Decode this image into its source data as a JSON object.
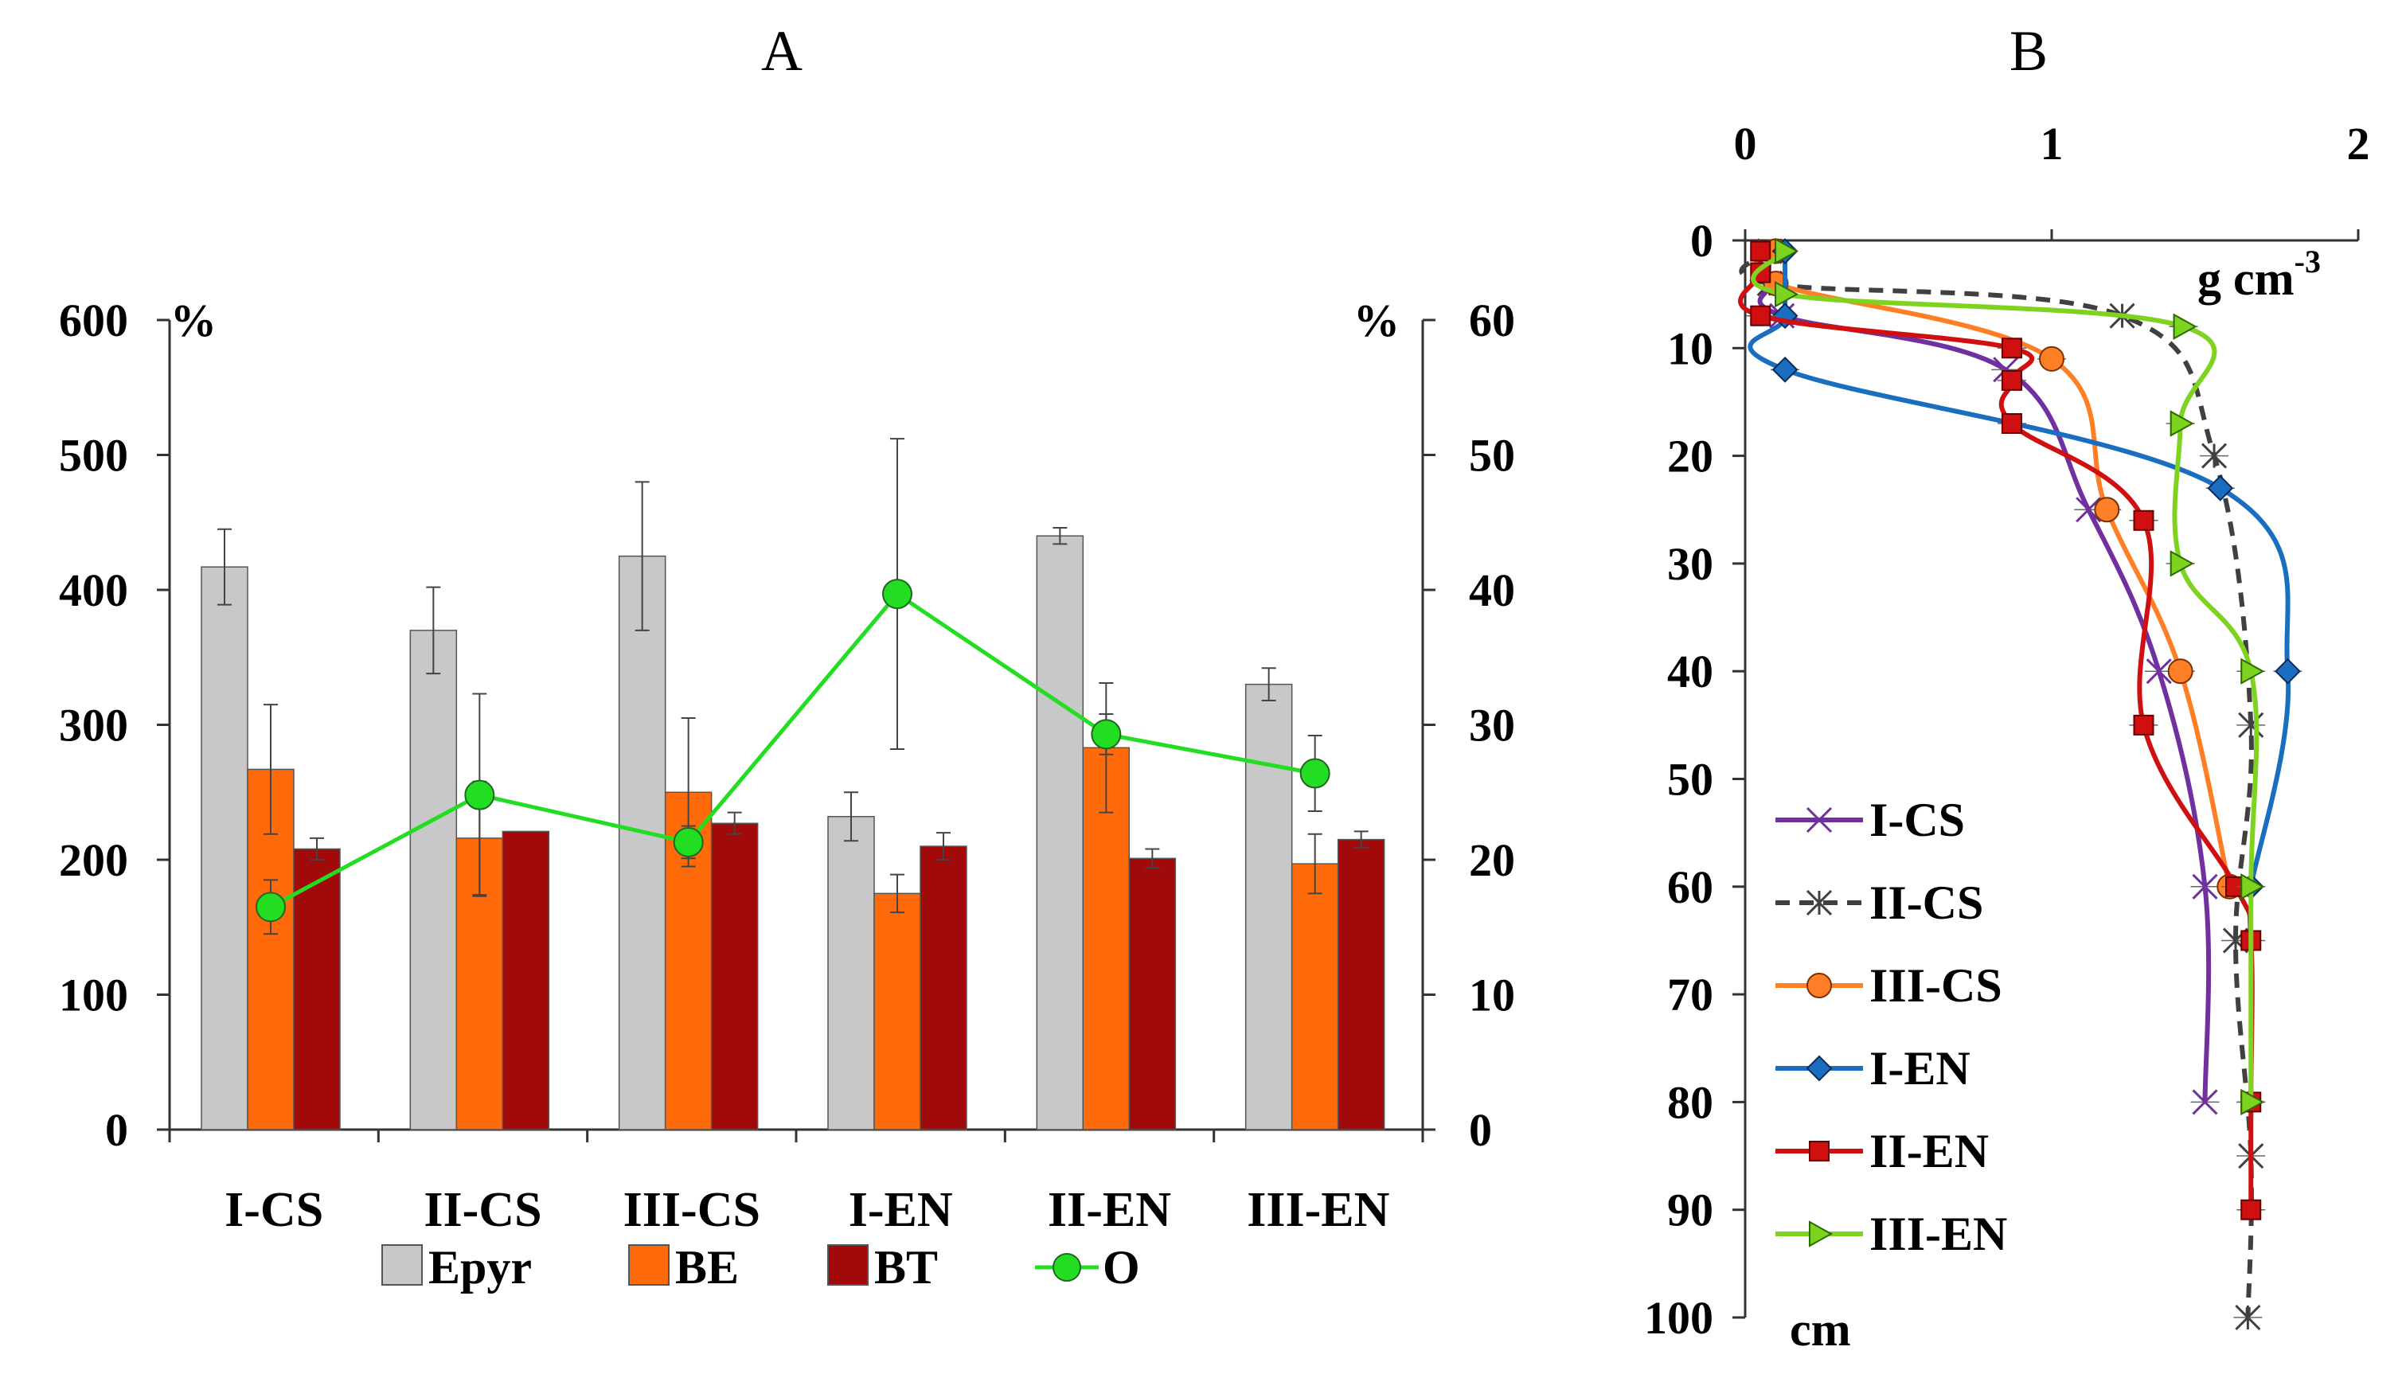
{
  "chart_data": [
    {
      "panel": "A",
      "type": "bar",
      "title": "A",
      "categories": [
        "I-CS",
        "II-CS",
        "III-CS",
        "I-EN",
        "II-EN",
        "III-EN"
      ],
      "ylim_left": [
        0,
        600
      ],
      "ylim_right": [
        0,
        60
      ],
      "yticks_left": [
        "0",
        "100",
        "200",
        "300",
        "400",
        "500",
        "600"
      ],
      "yticks_right": [
        "0",
        "10",
        "20",
        "30",
        "40",
        "50",
        "60"
      ],
      "ylabel_left": "%",
      "ylabel_right": "%",
      "series": [
        {
          "name": "Epyr",
          "axis": "left",
          "color": "#c8c8c8",
          "values": [
            417,
            370,
            425,
            232,
            440,
            330
          ],
          "err": [
            28,
            32,
            55,
            18,
            6,
            12
          ]
        },
        {
          "name": "BE",
          "axis": "left",
          "color": "#ff6a0a",
          "values": [
            267,
            216,
            250,
            175,
            283,
            197
          ],
          "err": [
            48,
            42,
            55,
            14,
            48,
            22
          ]
        },
        {
          "name": "BT",
          "axis": "left",
          "color": "#a00a0a",
          "values": [
            208,
            221,
            227,
            210,
            201,
            215
          ],
          "err": [
            8,
            0,
            8,
            10,
            7,
            6
          ]
        },
        {
          "name": "O",
          "axis": "right",
          "type": "line",
          "color": "#22dd22",
          "values": [
            16.5,
            24.8,
            21.3,
            39.7,
            29.3,
            26.4
          ],
          "err": [
            2.0,
            7.5,
            1.2,
            11.5,
            1.5,
            2.8
          ]
        }
      ],
      "legend": [
        "Epyr",
        "BE",
        "BT",
        "O"
      ]
    },
    {
      "panel": "B",
      "type": "line",
      "title": "B",
      "xlabel": "g cm",
      "xlabel_sup": "-3",
      "ylabel": "cm",
      "xlim": [
        0,
        2
      ],
      "ylim": [
        0,
        100
      ],
      "xticks": [
        "0",
        "1",
        "2"
      ],
      "yticks": [
        "0",
        "10",
        "20",
        "30",
        "40",
        "50",
        "60",
        "70",
        "80",
        "90",
        "100"
      ],
      "series": [
        {
          "name": "I-CS",
          "color": "#7030a0",
          "marker": "x",
          "dash": false,
          "points": [
            [
              0.08,
              1
            ],
            [
              0.08,
              4
            ],
            [
              0.12,
              7
            ],
            [
              0.85,
              12
            ],
            [
              1.12,
              25
            ],
            [
              1.35,
              40
            ],
            [
              1.5,
              60
            ],
            [
              1.5,
              80
            ]
          ]
        },
        {
          "name": "II-CS",
          "color": "#404040",
          "marker": "star",
          "dash": true,
          "points": [
            [
              0.08,
              1
            ],
            [
              0.08,
              4
            ],
            [
              1.23,
              7
            ],
            [
              1.53,
              20
            ],
            [
              1.65,
              45
            ],
            [
              1.6,
              65
            ],
            [
              1.65,
              85
            ],
            [
              1.64,
              100
            ]
          ]
        },
        {
          "name": "III-CS",
          "color": "#ff7f27",
          "marker": "circle",
          "dash": false,
          "points": [
            [
              0.1,
              1
            ],
            [
              0.1,
              4
            ],
            [
              1.0,
              11
            ],
            [
              1.18,
              25
            ],
            [
              1.42,
              40
            ],
            [
              1.58,
              60
            ]
          ]
        },
        {
          "name": "I-EN",
          "color": "#1a6ec0",
          "marker": "diamond",
          "dash": false,
          "points": [
            [
              0.13,
              1
            ],
            [
              0.13,
              7
            ],
            [
              0.13,
              12
            ],
            [
              1.55,
              23
            ],
            [
              1.77,
              40
            ],
            [
              1.65,
              60
            ]
          ]
        },
        {
          "name": "II-EN",
          "color": "#d01010",
          "marker": "square",
          "dash": false,
          "points": [
            [
              0.05,
              1
            ],
            [
              0.05,
              3
            ],
            [
              0.05,
              7
            ],
            [
              0.87,
              10
            ],
            [
              0.87,
              13
            ],
            [
              0.87,
              17
            ],
            [
              1.3,
              26
            ],
            [
              1.3,
              45
            ],
            [
              1.6,
              60
            ],
            [
              1.65,
              65
            ],
            [
              1.65,
              80
            ],
            [
              1.65,
              90
            ]
          ]
        },
        {
          "name": "III-EN",
          "color": "#7ed321",
          "marker": "triangle",
          "dash": false,
          "points": [
            [
              0.13,
              1
            ],
            [
              0.13,
              5
            ],
            [
              1.43,
              8
            ],
            [
              1.42,
              17
            ],
            [
              1.42,
              30
            ],
            [
              1.65,
              40
            ],
            [
              1.65,
              60
            ],
            [
              1.65,
              80
            ]
          ]
        }
      ],
      "legend": [
        "I-CS",
        "II-CS",
        "III-CS",
        "I-EN",
        "II-EN",
        "III-EN"
      ]
    }
  ]
}
